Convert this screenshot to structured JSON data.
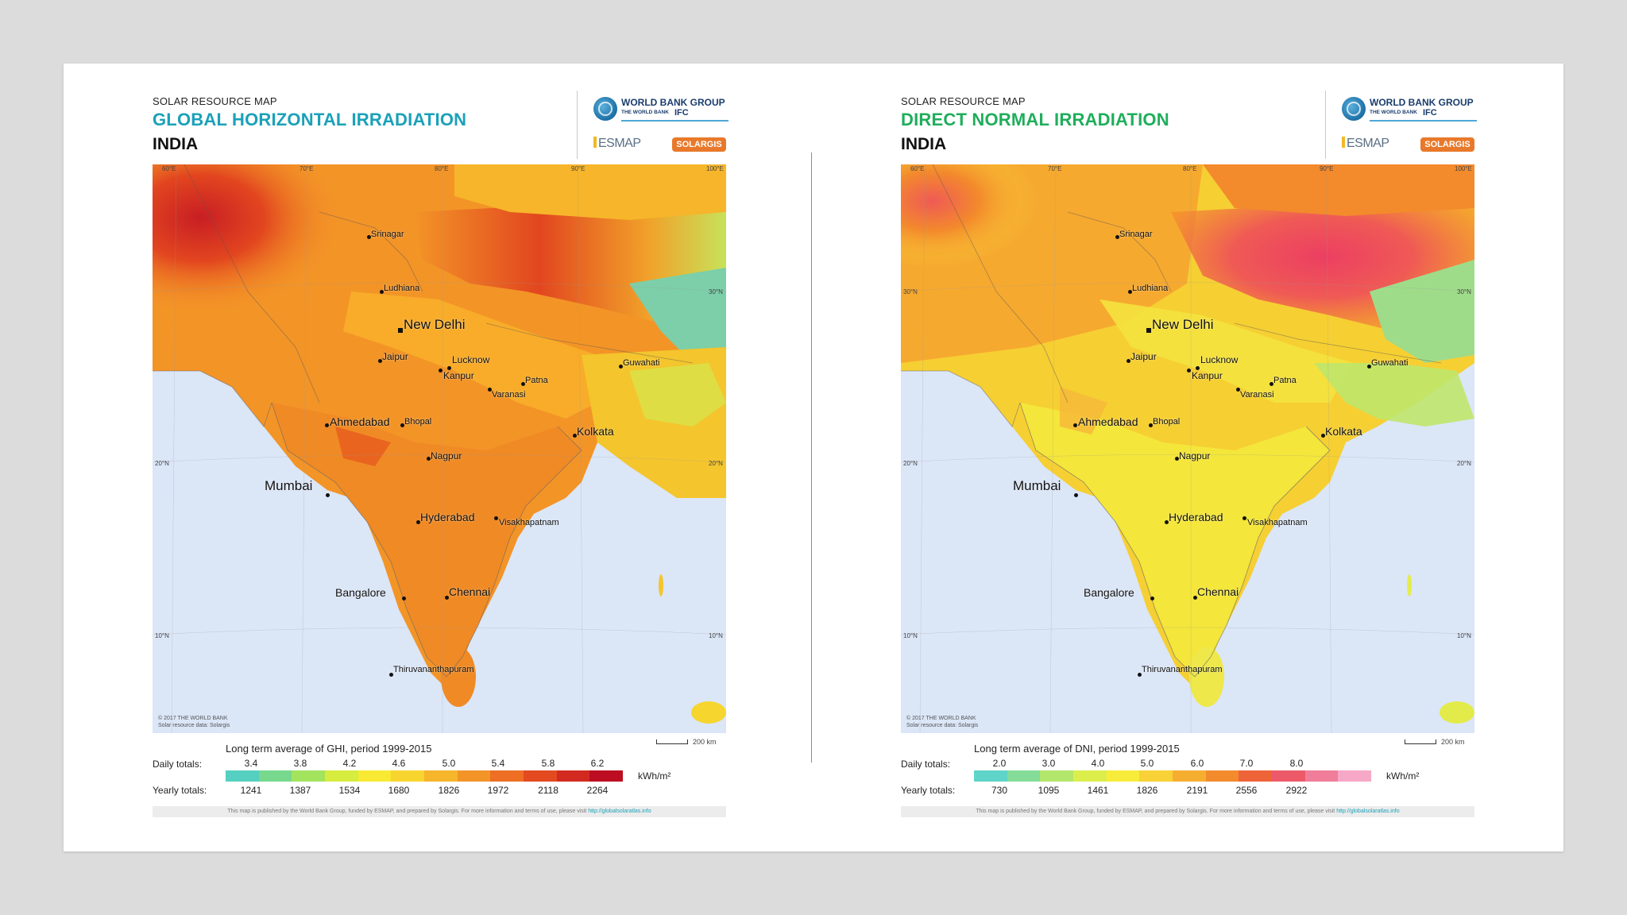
{
  "panels": [
    {
      "kicker": "SOLAR RESOURCE MAP",
      "title": "GLOBAL HORIZONTAL IRRADIATION",
      "country": "INDIA",
      "logos": {
        "wbg": "WORLD BANK GROUP",
        "wbg_sub": "THE WORLD BANK",
        "ifc": "IFC",
        "esmap": "ESMAP",
        "solargis": "SOLARGIS"
      },
      "map": {
        "lon_labels": [
          "60°E",
          "70°E",
          "80°E",
          "90°E",
          "100°E"
        ],
        "lat_labels": [
          "30°N",
          "20°N",
          "10°N"
        ],
        "credit_1": "© 2017 THE WORLD BANK",
        "credit_2": "Solar resource data: Solargis",
        "cities": [
          "Srinagar",
          "Ludhiana",
          "New Delhi",
          "Jaipur",
          "Lucknow",
          "Kanpur",
          "Patna",
          "Varanasi",
          "Guwahati",
          "Ahmedabad",
          "Bhopal",
          "Kolkata",
          "Nagpur",
          "Mumbai",
          "Hyderabad",
          "Visakhapatnam",
          "Bangalore",
          "Chennai",
          "Thiruvananthapuram"
        ]
      },
      "scale_label": "200 km",
      "legend": {
        "title": "Long term average of GHI, period 1999-2015",
        "daily_label": "Daily totals:",
        "yearly_label": "Yearly totals:",
        "unit": "kWh/m²",
        "daily": [
          "3.4",
          "3.8",
          "4.2",
          "4.6",
          "5.0",
          "5.4",
          "5.8",
          "6.2"
        ],
        "yearly": [
          "1241",
          "1387",
          "1534",
          "1680",
          "1826",
          "1972",
          "2118",
          "2264"
        ],
        "colors": [
          "#55cfc0",
          "#77d88e",
          "#a3e35e",
          "#d6ec3e",
          "#f8ea32",
          "#f8d52e",
          "#f6b52a",
          "#f39427",
          "#ee6f24",
          "#e34a20",
          "#d32a1f",
          "#bd0d22"
        ]
      },
      "footer": "This map is published by the World Bank Group, funded by ESMAP, and prepared by Solargis. For more information and terms of use, please visit",
      "footer_link": "http://globalsolaratlas.info"
    },
    {
      "kicker": "SOLAR RESOURCE MAP",
      "title": "DIRECT NORMAL IRRADIATION",
      "country": "INDIA",
      "logos": {
        "wbg": "WORLD BANK GROUP",
        "wbg_sub": "THE WORLD BANK",
        "ifc": "IFC",
        "esmap": "ESMAP",
        "solargis": "SOLARGIS"
      },
      "map": {
        "lon_labels": [
          "60°E",
          "70°E",
          "80°E",
          "90°E",
          "100°E"
        ],
        "lat_labels": [
          "30°N",
          "20°N",
          "10°N"
        ],
        "credit_1": "© 2017 THE WORLD BANK",
        "credit_2": "Solar resource data: Solargis",
        "cities": [
          "Srinagar",
          "Ludhiana",
          "New Delhi",
          "Jaipur",
          "Lucknow",
          "Kanpur",
          "Patna",
          "Varanasi",
          "Guwahati",
          "Ahmedabad",
          "Bhopal",
          "Kolkata",
          "Nagpur",
          "Mumbai",
          "Hyderabad",
          "Visakhapatnam",
          "Bangalore",
          "Chennai",
          "Thiruvananthapuram"
        ]
      },
      "scale_label": "200 km",
      "legend": {
        "title": "Long term average of DNI, period 1999-2015",
        "daily_label": "Daily totals:",
        "yearly_label": "Yearly totals:",
        "unit": "kWh/m²",
        "daily": [
          "2.0",
          "3.0",
          "4.0",
          "5.0",
          "6.0",
          "7.0",
          "8.0"
        ],
        "yearly": [
          "730",
          "1095",
          "1461",
          "1826",
          "2191",
          "2556",
          "2922"
        ],
        "colors": [
          "#5fd4c8",
          "#84dc98",
          "#b2e66c",
          "#dcee4c",
          "#f8ec3a",
          "#f8d236",
          "#f6ae30",
          "#f38a2c",
          "#ef6338",
          "#ec5a6a",
          "#f07e9a",
          "#f6a8c6"
        ]
      },
      "footer": "This map is published by the World Bank Group, funded by ESMAP, and prepared by Solargis. For more information and terms of use, please visit",
      "footer_link": "http://globalsolaratlas.info"
    }
  ]
}
